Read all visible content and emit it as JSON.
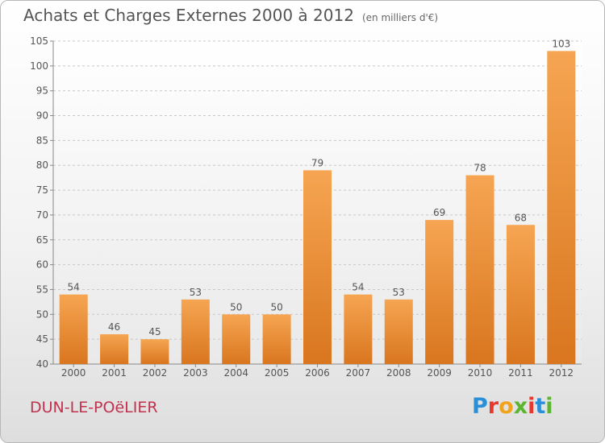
{
  "header": {
    "title": "Achats et Charges Externes 2000 à 2012",
    "unit": "(en milliers d'€)"
  },
  "footer": {
    "commune": "DUN-LE-POëLIER",
    "brand": "Proxiti",
    "brand_colors": [
      "#2b8fd8",
      "#e8382c",
      "#f2a31b",
      "#5bb531",
      "#e8382c",
      "#2b8fd8",
      "#5bb531"
    ]
  },
  "colors": {
    "bar_top": "#f6a552",
    "bar_bottom": "#d9761f",
    "grid": "#c8c8c8",
    "text": "#555555",
    "commune": "#c0324d"
  },
  "chart_data": {
    "type": "bar",
    "categories": [
      "2000",
      "2001",
      "2002",
      "2003",
      "2004",
      "2005",
      "2006",
      "2007",
      "2008",
      "2009",
      "2010",
      "2011",
      "2012"
    ],
    "values": [
      54,
      46,
      45,
      53,
      50,
      50,
      79,
      54,
      53,
      69,
      78,
      68,
      103
    ],
    "data_labels": [
      "54",
      "46",
      "45",
      "53",
      "50",
      "50",
      "79",
      "54",
      "53",
      "69",
      "78",
      "68",
      "103"
    ],
    "ylim": [
      40,
      105
    ],
    "yticks": [
      40,
      45,
      50,
      55,
      60,
      65,
      70,
      75,
      80,
      85,
      90,
      95,
      100,
      105
    ],
    "title": "Achats et Charges Externes 2000 à 2012",
    "ylabel": "(en milliers d'€)",
    "xlabel": "",
    "grid": "horizontal dashed"
  }
}
